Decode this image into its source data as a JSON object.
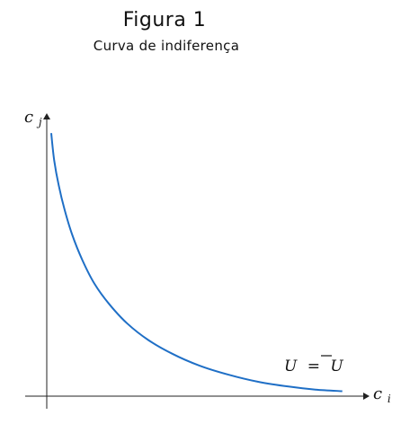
{
  "figure_label": "Figura 1",
  "chart_data": {
    "type": "line",
    "title": "Curva de indiferença",
    "xlabel": "c",
    "xlabel_sub": "i",
    "ylabel": "c",
    "ylabel_sub": "j",
    "annotation": {
      "lhs": "U",
      "eq": "=",
      "rhs": "U",
      "rhs_overline": true
    },
    "xlim": [
      0,
      10
    ],
    "ylim": [
      0,
      10
    ],
    "grid": false,
    "series": [
      {
        "color": "#1f6fc6",
        "x": [
          0.15,
          0.25,
          0.4,
          0.6,
          0.85,
          1.2,
          1.6,
          2.1,
          2.7,
          3.4,
          4.2,
          5.1,
          6.1,
          7.1,
          8.1,
          9.0,
          9.9
        ],
        "y": [
          9.6,
          8.6,
          7.7,
          6.8,
          5.9,
          4.95,
          4.1,
          3.35,
          2.65,
          2.05,
          1.55,
          1.12,
          0.78,
          0.52,
          0.35,
          0.24,
          0.18
        ]
      }
    ]
  }
}
